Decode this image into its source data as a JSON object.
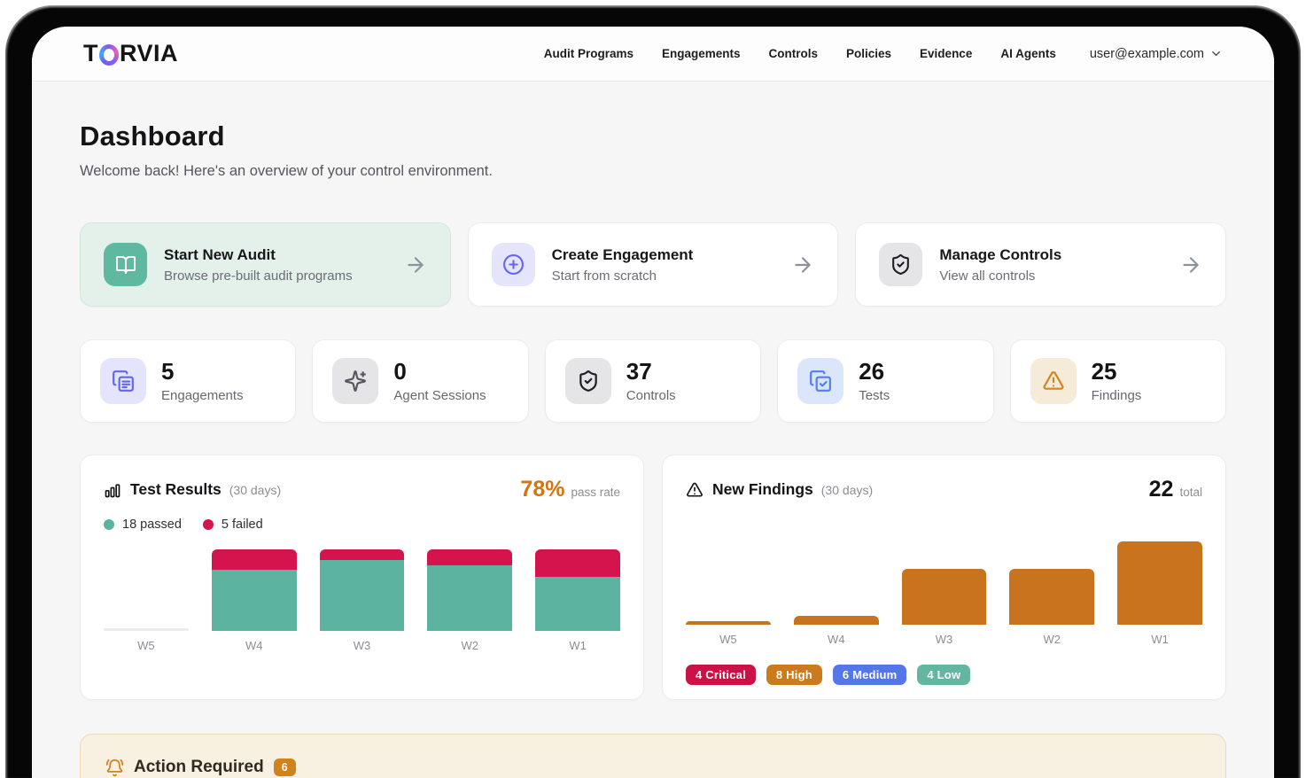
{
  "brand": {
    "name": "TORVIA"
  },
  "nav": {
    "items": [
      "Audit Programs",
      "Engagements",
      "Controls",
      "Policies",
      "Evidence",
      "AI Agents"
    ],
    "user_email": "user@example.com"
  },
  "page": {
    "title": "Dashboard",
    "subtitle": "Welcome back! Here's an overview of your control environment."
  },
  "quick_actions": [
    {
      "title": "Start New Audit",
      "subtitle": "Browse pre-built audit programs",
      "icon": "book-open",
      "accent": "teal"
    },
    {
      "title": "Create Engagement",
      "subtitle": "Start from scratch",
      "icon": "plus-circle",
      "accent": "purple"
    },
    {
      "title": "Manage Controls",
      "subtitle": "View all controls",
      "icon": "shield-check",
      "accent": "gray"
    }
  ],
  "stats": [
    {
      "value": "5",
      "label": "Engagements",
      "icon": "clipboard-copy"
    },
    {
      "value": "0",
      "label": "Agent Sessions",
      "icon": "sparkles"
    },
    {
      "value": "37",
      "label": "Controls",
      "icon": "shield-check"
    },
    {
      "value": "26",
      "label": "Tests",
      "icon": "copy-check"
    },
    {
      "value": "25",
      "label": "Findings",
      "icon": "triangle-alert"
    }
  ],
  "chart_data": [
    {
      "type": "bar",
      "stacked": true,
      "normalized": true,
      "title": "Test Results",
      "subtitle": "(30 days)",
      "pass_rate": "78%",
      "pass_rate_label": "pass rate",
      "legend": [
        {
          "label": "18 passed",
          "color": "#5cb3a0"
        },
        {
          "label": "5 failed",
          "color": "#d5134c"
        }
      ],
      "categories": [
        "W5",
        "W4",
        "W3",
        "W2",
        "W1"
      ],
      "series": [
        {
          "name": "passed",
          "color": "#5cb3a0",
          "values": [
            0,
            3,
            7,
            4,
            4
          ]
        },
        {
          "name": "failed",
          "color": "#d5134c",
          "values": [
            0,
            1,
            1,
            1,
            2
          ]
        }
      ],
      "empty_bar_color": "#ececef"
    },
    {
      "type": "bar",
      "title": "New Findings",
      "subtitle": "(30 days)",
      "total": "22",
      "total_label": "total",
      "categories": [
        "W5",
        "W4",
        "W3",
        "W2",
        "W1"
      ],
      "values": [
        0,
        1,
        6,
        6,
        9
      ],
      "bar_color": "#c9731f",
      "severity": [
        {
          "label": "4 Critical",
          "color": "#cb1247"
        },
        {
          "label": "8 High",
          "color": "#cb7a1e"
        },
        {
          "label": "6 Medium",
          "color": "#5377e8"
        },
        {
          "label": "4 Low",
          "color": "#64b6a2"
        }
      ]
    }
  ],
  "action_required": {
    "title": "Action Required",
    "badge": "6"
  },
  "colors": {
    "pass_rate_accent": "#d2760e",
    "teal_accent": "#5eb9a0",
    "purple_accent": "#6466e9",
    "blue_accent": "#4f7ef0",
    "orange_accent": "#d4841c"
  }
}
